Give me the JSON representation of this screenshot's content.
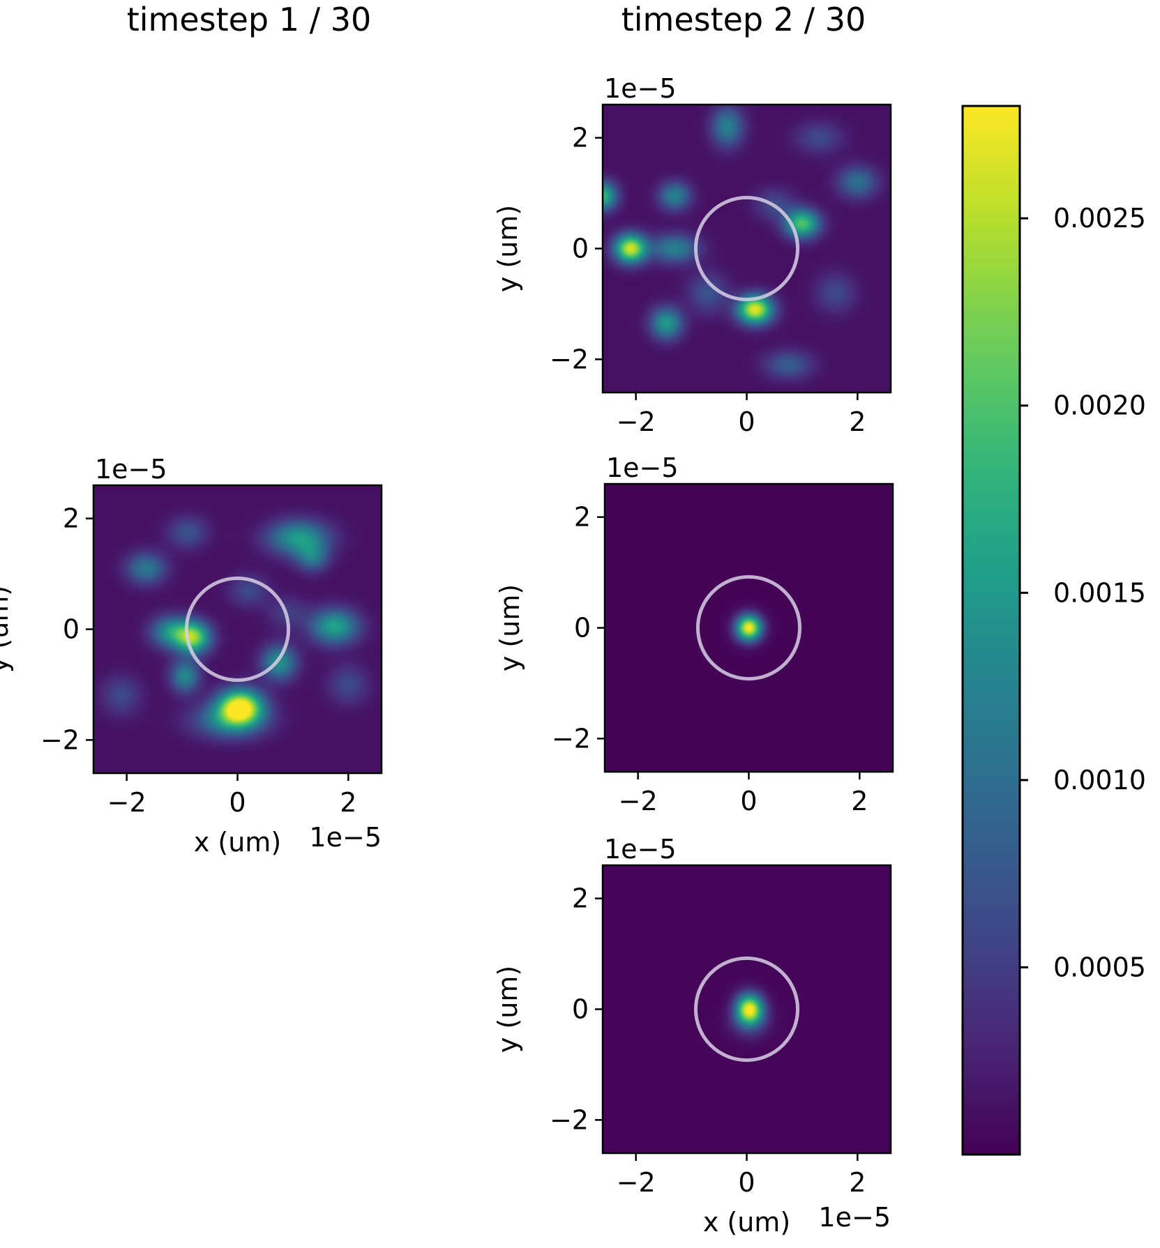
{
  "columns": [
    {
      "title": "timestep 1 / 30"
    },
    {
      "title": "timestep 2 / 30"
    }
  ],
  "colorbar": {
    "colormap": "viridis",
    "min": 0.0,
    "max": 0.0028,
    "ticks": [
      0.0005,
      0.001,
      0.0015,
      0.002,
      0.0025
    ],
    "tick_labels": [
      "0.0005",
      "0.0010",
      "0.0015",
      "0.0020",
      "0.0025"
    ]
  },
  "chart_data": [
    {
      "type": "heatmap",
      "column": 0,
      "description_visible": "speckle intensity map",
      "x_range": [
        -2.6,
        2.6
      ],
      "y_range": [
        -2.6,
        2.6
      ],
      "xticks": [
        -2,
        0,
        2
      ],
      "yticks": [
        -2,
        0,
        2
      ],
      "xtick_labels": [
        "−2",
        "0",
        "2"
      ],
      "ytick_labels": [
        "−2",
        "0",
        "2"
      ],
      "x_scale_label": "1e−5",
      "y_scale_label": "1e−5",
      "xlabel": "x (um)",
      "ylabel": "y (um)",
      "circle": {
        "cx": 0,
        "cy": 0,
        "r": 0.92,
        "color": "#d8cfe6"
      },
      "background": 0.00012,
      "blobs": [
        {
          "x": 0.05,
          "y": -1.4,
          "sx": 0.28,
          "sy": 0.22,
          "a": 0.0027
        },
        {
          "x": -0.15,
          "y": -1.65,
          "sx": 0.45,
          "sy": 0.22,
          "a": 0.0011
        },
        {
          "x": -0.8,
          "y": -0.15,
          "sx": 0.22,
          "sy": 0.2,
          "a": 0.0021
        },
        {
          "x": -1.2,
          "y": -0.05,
          "sx": 0.25,
          "sy": 0.2,
          "a": 0.0013
        },
        {
          "x": -0.95,
          "y": -0.85,
          "sx": 0.18,
          "sy": 0.2,
          "a": 0.0012
        },
        {
          "x": 0.75,
          "y": -0.6,
          "sx": 0.22,
          "sy": 0.22,
          "a": 0.0013
        },
        {
          "x": 1.75,
          "y": 0.05,
          "sx": 0.3,
          "sy": 0.22,
          "a": 0.0015
        },
        {
          "x": 1.1,
          "y": 1.65,
          "sx": 0.38,
          "sy": 0.22,
          "a": 0.0014
        },
        {
          "x": 1.35,
          "y": 1.3,
          "sx": 0.2,
          "sy": 0.18,
          "a": 0.0009
        },
        {
          "x": -1.65,
          "y": 1.1,
          "sx": 0.25,
          "sy": 0.2,
          "a": 0.001
        },
        {
          "x": -0.9,
          "y": 1.75,
          "sx": 0.25,
          "sy": 0.2,
          "a": 0.0006
        },
        {
          "x": 0.2,
          "y": 0.7,
          "sx": 0.25,
          "sy": 0.2,
          "a": 0.0005
        },
        {
          "x": 2.0,
          "y": -1.0,
          "sx": 0.25,
          "sy": 0.25,
          "a": 0.0005
        },
        {
          "x": -2.1,
          "y": -1.2,
          "sx": 0.25,
          "sy": 0.25,
          "a": 0.0005
        },
        {
          "x": 0.9,
          "y": 0.3,
          "sx": 0.25,
          "sy": 0.2,
          "a": 0.0004
        }
      ]
    },
    {
      "type": "heatmap",
      "column": 1,
      "row": 0,
      "description_visible": "speckle intensity map",
      "x_range": [
        -2.6,
        2.6
      ],
      "y_range": [
        -2.6,
        2.6
      ],
      "xticks": [
        -2,
        0,
        2
      ],
      "yticks": [
        -2,
        0,
        2
      ],
      "xtick_labels": [
        "−2",
        "0",
        "2"
      ],
      "ytick_labels": [
        "−2",
        "0",
        "2"
      ],
      "x_scale_label": "",
      "y_scale_label": "1e−5",
      "xlabel": "",
      "ylabel": "y (um)",
      "circle": {
        "cx": 0,
        "cy": 0,
        "r": 0.92,
        "color": "#d8cfe6"
      },
      "background": 0.00012,
      "blobs": [
        {
          "x": -2.1,
          "y": 0.0,
          "sx": 0.2,
          "sy": 0.18,
          "a": 0.0025
        },
        {
          "x": 0.15,
          "y": -1.1,
          "sx": 0.22,
          "sy": 0.18,
          "a": 0.0026
        },
        {
          "x": 1.0,
          "y": 0.45,
          "sx": 0.22,
          "sy": 0.18,
          "a": 0.0019
        },
        {
          "x": -1.45,
          "y": -1.35,
          "sx": 0.2,
          "sy": 0.2,
          "a": 0.0014
        },
        {
          "x": -1.3,
          "y": 0.0,
          "sx": 0.3,
          "sy": 0.18,
          "a": 0.0011
        },
        {
          "x": -2.6,
          "y": 0.95,
          "sx": 0.18,
          "sy": 0.18,
          "a": 0.0017
        },
        {
          "x": -1.3,
          "y": 0.95,
          "sx": 0.2,
          "sy": 0.18,
          "a": 0.0011
        },
        {
          "x": -0.35,
          "y": 2.2,
          "sx": 0.2,
          "sy": 0.25,
          "a": 0.0011
        },
        {
          "x": 2.0,
          "y": 1.2,
          "sx": 0.25,
          "sy": 0.2,
          "a": 0.0009
        },
        {
          "x": 0.75,
          "y": -2.1,
          "sx": 0.3,
          "sy": 0.18,
          "a": 0.0007
        },
        {
          "x": -0.7,
          "y": -0.8,
          "sx": 0.25,
          "sy": 0.25,
          "a": 0.0006
        },
        {
          "x": 0.5,
          "y": 0.8,
          "sx": 0.25,
          "sy": 0.2,
          "a": 0.0005
        },
        {
          "x": 1.6,
          "y": -0.8,
          "sx": 0.25,
          "sy": 0.25,
          "a": 0.0005
        },
        {
          "x": 1.3,
          "y": 2.0,
          "sx": 0.3,
          "sy": 0.2,
          "a": 0.0005
        }
      ]
    },
    {
      "type": "heatmap",
      "column": 1,
      "row": 1,
      "description_visible": "focused spot",
      "x_range": [
        -2.6,
        2.6
      ],
      "y_range": [
        -2.6,
        2.6
      ],
      "xticks": [
        -2,
        0,
        2
      ],
      "yticks": [
        -2,
        0,
        2
      ],
      "xtick_labels": [
        "−2",
        "0",
        "2"
      ],
      "ytick_labels": [
        "−2",
        "0",
        "2"
      ],
      "x_scale_label": "",
      "y_scale_label": "1e−5",
      "xlabel": "",
      "ylabel": "y (um)",
      "circle": {
        "cx": 0,
        "cy": 0,
        "r": 0.92,
        "color": "#d8cfe6"
      },
      "background": 3e-05,
      "blobs": [
        {
          "x": 0.0,
          "y": 0.0,
          "sx": 0.16,
          "sy": 0.16,
          "a": 0.0028
        }
      ]
    },
    {
      "type": "heatmap",
      "column": 1,
      "row": 2,
      "description_visible": "focused spot",
      "x_range": [
        -2.6,
        2.6
      ],
      "y_range": [
        -2.6,
        2.6
      ],
      "xticks": [
        -2,
        0,
        2
      ],
      "yticks": [
        -2,
        0,
        2
      ],
      "xtick_labels": [
        "−2",
        "0",
        "2"
      ],
      "ytick_labels": [
        "−2",
        "0",
        "2"
      ],
      "x_scale_label": "1e−5",
      "y_scale_label": "1e−5",
      "xlabel": "x (um)",
      "ylabel": "y (um)",
      "circle": {
        "cx": 0,
        "cy": 0,
        "r": 0.92,
        "color": "#d8cfe6"
      },
      "background": 4e-05,
      "blobs": [
        {
          "x": 0.05,
          "y": 0.0,
          "sx": 0.17,
          "sy": 0.19,
          "a": 0.0027
        },
        {
          "x": 0.05,
          "y": -0.25,
          "sx": 0.25,
          "sy": 0.2,
          "a": 0.0004
        }
      ]
    }
  ]
}
